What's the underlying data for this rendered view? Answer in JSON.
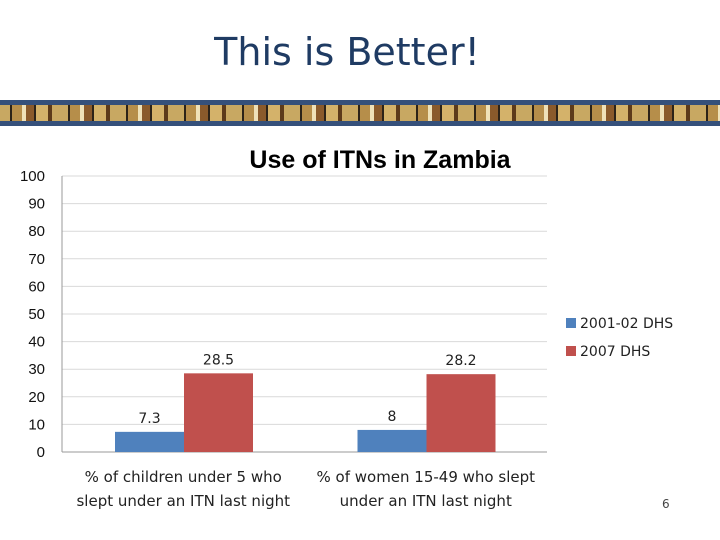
{
  "slide": {
    "title": "This is Better!",
    "number": "6"
  },
  "colors": {
    "series_2001": "#4f81bd",
    "series_2007": "#c0504d",
    "title": "#1f3b63",
    "banner": "#35507a"
  },
  "chart_data": {
    "type": "bar",
    "title": "Use of ITNs in Zambia",
    "categories": [
      [
        "% of children under 5 who",
        "slept under an ITN last night"
      ],
      [
        "% of women 15-49 who slept",
        "under an ITN last night"
      ]
    ],
    "series": [
      {
        "name": "2001-02 DHS",
        "values": [
          7.3,
          8
        ],
        "labels": [
          "7.3",
          "8"
        ],
        "color": "#4f81bd"
      },
      {
        "name": "2007 DHS",
        "values": [
          28.5,
          28.2
        ],
        "labels": [
          "28.5",
          "28.2"
        ],
        "color": "#c0504d"
      }
    ],
    "ylim": [
      0,
      100
    ],
    "yticks": [
      "0",
      "10",
      "20",
      "30",
      "40",
      "50",
      "60",
      "70",
      "80",
      "90",
      "100"
    ],
    "xlabel": "",
    "ylabel": "",
    "grid": true,
    "legend": "right"
  }
}
